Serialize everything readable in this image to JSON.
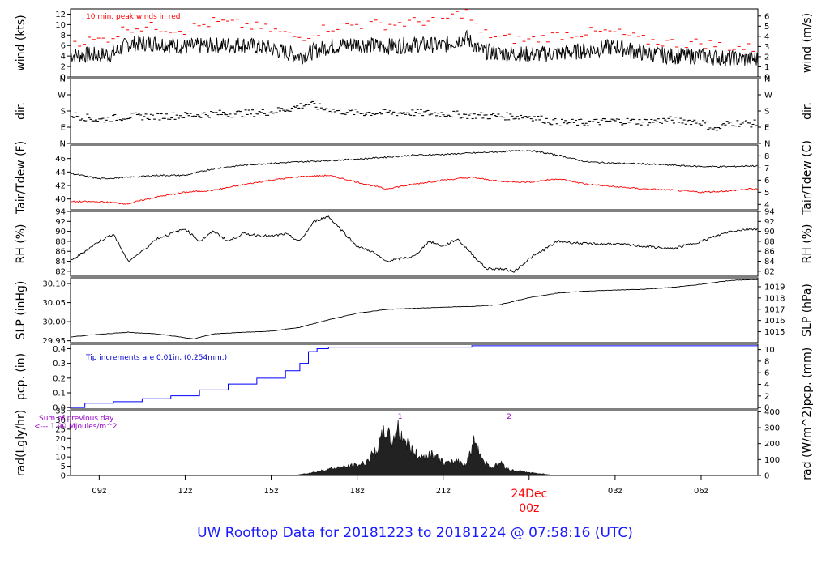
{
  "footer": {
    "title": "UW Rooftop Data for 20181223  to  20181224 @ 07:58:16  (UTC)"
  },
  "colors": {
    "series": "#000000",
    "peak": "#ff0000",
    "dewpoint": "#ff0000",
    "precip": "#0000ff",
    "note_blue": "#0000cc",
    "note_purple": "#9900cc",
    "date_label": "#ff0000",
    "footer": "#1a1aff"
  },
  "chart_data": [
    {
      "id": "wind",
      "type": "line",
      "ylabel": "wind (kts)",
      "ylabel_right": "wind (m/s)",
      "ylim": [
        0,
        13
      ],
      "yticks": [
        0,
        2,
        4,
        6,
        8,
        10,
        12
      ],
      "ylim_right": [
        0,
        6.7
      ],
      "yticks_right": [
        0,
        1,
        2,
        3,
        4,
        5,
        6
      ],
      "annotation": "10 min. peak winds in red",
      "x": [
        8.0,
        9.0,
        9.5,
        10.0,
        11.0,
        12.0,
        13.0,
        14.0,
        15.0,
        16.0,
        17.0,
        18.0,
        19.0,
        20.0,
        21.0,
        21.8,
        22.3,
        23.0,
        24.0,
        25.0,
        26.0,
        27.0,
        28.0,
        29.0,
        30.0,
        31.0,
        31.7
      ],
      "series": [
        {
          "values": [
            4.2,
            4.2,
            4.5,
            6.3,
            6.5,
            5.8,
            6.0,
            6.2,
            5.4,
            4.0,
            5.8,
            6.3,
            5.8,
            6.2,
            6.0,
            7.5,
            5.0,
            4.5,
            4.3,
            4.5,
            5.0,
            5.8,
            4.5,
            4.0,
            4.0,
            3.5,
            3.4
          ]
        },
        {
          "values": [
            6.8,
            7.0,
            7.8,
            9.5,
            9.5,
            9.0,
            10.5,
            10.0,
            9.0,
            7.5,
            9.5,
            10.0,
            10.0,
            10.5,
            11.0,
            12.5,
            8.5,
            7.5,
            7.0,
            8.0,
            8.5,
            8.5,
            7.0,
            6.5,
            6.5,
            5.8,
            5.5
          ]
        }
      ]
    },
    {
      "id": "dir",
      "type": "scatter",
      "ylabel": "dir.",
      "ylabel_right": "dir.",
      "ylim": [
        0,
        360
      ],
      "ytick_labels": [
        "N",
        "E",
        "S",
        "W",
        "N"
      ],
      "x": [
        8.0,
        9.0,
        10.0,
        11.0,
        12.0,
        13.0,
        14.0,
        15.0,
        15.7,
        16.3,
        17.0,
        18.0,
        19.0,
        20.0,
        21.0,
        22.0,
        23.0,
        24.0,
        25.0,
        26.0,
        27.0,
        28.0,
        29.0,
        30.0,
        30.5,
        31.0,
        31.7
      ],
      "series": [
        {
          "values": [
            160,
            130,
            150,
            150,
            155,
            165,
            165,
            175,
            195,
            220,
            185,
            170,
            170,
            170,
            165,
            155,
            150,
            150,
            115,
            115,
            125,
            120,
            130,
            120,
            75,
            115,
            110
          ]
        }
      ]
    },
    {
      "id": "temp",
      "type": "line",
      "ylabel": "Tair/Tdew (F)",
      "ylabel_right": "Tair/Tdew (C)",
      "ylim": [
        38.4,
        48.0
      ],
      "yticks": [
        40,
        42,
        44,
        46
      ],
      "ylim_right": [
        3.555,
        8.889
      ],
      "yticks_right": [
        4,
        5,
        6,
        7,
        8
      ],
      "x": [
        8.0,
        9.0,
        10.0,
        11.0,
        12.0,
        13.0,
        14.0,
        15.0,
        16.0,
        17.0,
        18.0,
        19.0,
        20.0,
        21.0,
        22.0,
        23.0,
        24.0,
        25.0,
        26.0,
        27.0,
        28.0,
        29.0,
        30.0,
        31.0,
        31.7
      ],
      "series": [
        {
          "name": "Tair",
          "values": [
            43.8,
            43.0,
            43.2,
            43.5,
            43.5,
            44.5,
            45.0,
            45.3,
            45.5,
            45.7,
            45.9,
            46.2,
            46.5,
            46.6,
            46.8,
            47.0,
            47.2,
            46.5,
            45.5,
            45.3,
            45.2,
            45.0,
            44.8,
            44.8,
            44.9
          ]
        },
        {
          "name": "Tdew",
          "values": [
            39.6,
            39.6,
            39.3,
            40.3,
            41.0,
            41.3,
            42.1,
            42.8,
            43.3,
            43.5,
            42.5,
            41.5,
            42.2,
            42.8,
            43.2,
            42.6,
            42.5,
            43.0,
            42.2,
            41.8,
            41.5,
            41.3,
            41.0,
            41.2,
            41.5
          ]
        }
      ]
    },
    {
      "id": "rh",
      "type": "line",
      "ylabel": "RH (%)",
      "ylabel_right": "RH (%)",
      "ylim": [
        81,
        94
      ],
      "yticks": [
        82,
        84,
        86,
        88,
        90,
        92,
        94
      ],
      "ylim_right": [
        81,
        94
      ],
      "yticks_right": [
        82,
        84,
        86,
        88,
        90,
        92,
        94
      ],
      "x": [
        8.0,
        8.5,
        9.0,
        9.5,
        10.0,
        10.5,
        11.0,
        12.0,
        12.5,
        13.0,
        13.5,
        14.0,
        15.0,
        15.5,
        16.0,
        16.5,
        17.0,
        17.5,
        18.0,
        18.5,
        19.0,
        19.5,
        20.0,
        20.5,
        21.0,
        21.5,
        22.0,
        22.5,
        23.0,
        23.5,
        24.0,
        25.0,
        26.0,
        27.0,
        28.0,
        29.0,
        30.0,
        31.0,
        31.7
      ],
      "series": [
        {
          "values": [
            84.0,
            86.0,
            88.0,
            89.5,
            84.0,
            86.0,
            88.5,
            90.5,
            88.0,
            90.0,
            88.0,
            89.5,
            89.0,
            89.5,
            88.0,
            92.0,
            93.0,
            90.0,
            87.0,
            86.0,
            84.0,
            84.5,
            85.0,
            88.0,
            87.0,
            88.5,
            85.5,
            82.5,
            82.5,
            82.0,
            84.5,
            88.0,
            87.5,
            87.5,
            87.0,
            86.5,
            88.0,
            90.0,
            90.5
          ]
        }
      ]
    },
    {
      "id": "slp",
      "type": "line",
      "ylabel": "SLP (inHg)",
      "ylabel_right": "SLP (hPa)",
      "ylim": [
        29.945,
        30.115
      ],
      "yticks": [
        29.95,
        30.0,
        30.05,
        30.1
      ],
      "ylim_right": [
        1014.03,
        1019.79
      ],
      "yticks_right": [
        1015,
        1016,
        1017,
        1018,
        1019
      ],
      "x": [
        8.0,
        9.0,
        10.0,
        11.0,
        12.0,
        12.3,
        13.0,
        14.0,
        15.0,
        16.0,
        17.0,
        18.0,
        19.0,
        20.0,
        21.0,
        22.0,
        23.0,
        24.0,
        25.0,
        26.0,
        27.0,
        28.0,
        29.0,
        30.0,
        31.0,
        31.7
      ],
      "series": [
        {
          "values": [
            29.96,
            29.967,
            29.972,
            29.968,
            29.958,
            29.955,
            29.968,
            29.972,
            29.975,
            29.985,
            30.005,
            30.022,
            30.032,
            30.035,
            30.038,
            30.04,
            30.045,
            30.063,
            30.075,
            30.08,
            30.083,
            30.085,
            30.09,
            30.098,
            30.108,
            30.11
          ]
        }
      ]
    },
    {
      "id": "pcp",
      "type": "line",
      "ylabel": "pcp. (in)",
      "ylabel_right": "pcp. (mm)",
      "ylim": [
        -0.01,
        0.43
      ],
      "yticks": [
        0.0,
        0.1,
        0.2,
        0.3,
        0.4
      ],
      "ylim_right": [
        -0.254,
        10.92
      ],
      "yticks_right": [
        0,
        2,
        4,
        6,
        8,
        10
      ],
      "annotation": "Tip increments are 0.01in. (0.254mm.)",
      "x": [
        8.0,
        8.5,
        9.5,
        10.5,
        11.5,
        12.5,
        13.5,
        14.5,
        15.5,
        16.0,
        16.3,
        16.6,
        17.0,
        17.5,
        21.8,
        22.0,
        31.7
      ],
      "series": [
        {
          "values": [
            0.0,
            0.03,
            0.04,
            0.06,
            0.08,
            0.12,
            0.16,
            0.2,
            0.25,
            0.3,
            0.38,
            0.4,
            0.41,
            0.41,
            0.41,
            0.42,
            0.42
          ]
        }
      ]
    },
    {
      "id": "rad",
      "type": "area",
      "ylabel": "rad(Lgly/hr)",
      "ylabel_right": "rad (W/m^2)",
      "ylim": [
        0,
        35
      ],
      "yticks": [
        0,
        5,
        10,
        15,
        20,
        25,
        30,
        35
      ],
      "ylim_right": [
        0,
        406.9
      ],
      "yticks_right": [
        0,
        100,
        200,
        300,
        400
      ],
      "annotation_lines": [
        "Sum of previous day",
        "<--- 1.90 MJoules/m^2"
      ],
      "markers": [
        "1",
        "2"
      ],
      "x": [
        15.8,
        16.2,
        16.6,
        17.0,
        17.5,
        18.0,
        18.3,
        18.7,
        19.0,
        19.2,
        19.4,
        19.6,
        19.8,
        20.0,
        20.3,
        20.6,
        21.0,
        21.2,
        21.5,
        21.8,
        22.1,
        22.4,
        22.7,
        23.0,
        23.3,
        23.6,
        24.0,
        24.5,
        24.9
      ],
      "series": [
        {
          "values": [
            0,
            1.0,
            2.0,
            3.5,
            4.5,
            5.5,
            7.0,
            14.0,
            25.0,
            17.0,
            26.0,
            20.0,
            16.0,
            12.0,
            10.0,
            12.0,
            7.0,
            6.5,
            8.0,
            6.0,
            19.0,
            8.0,
            4.0,
            7.0,
            3.0,
            2.5,
            1.5,
            0.8,
            0
          ]
        }
      ]
    }
  ],
  "x_axis": {
    "tick_labels": [
      "09z",
      "12z",
      "15z",
      "18z",
      "21z",
      "00z",
      "03z",
      "06z"
    ],
    "tick_hours": [
      9,
      12,
      15,
      18,
      21,
      24,
      27,
      30
    ],
    "date_label": "24Dec",
    "date_sub": "00z",
    "range": [
      8.0,
      31.98
    ]
  }
}
